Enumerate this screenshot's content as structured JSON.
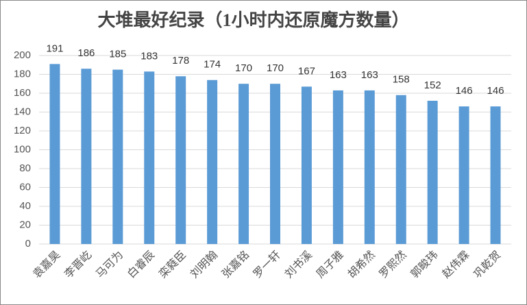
{
  "chart_data": {
    "type": "bar",
    "title": "大堆最好纪录（1小时内还原魔方数量）",
    "categories": [
      "袁嘉昊",
      "李晋屹",
      "马可为",
      "白睿辰",
      "栾蕤臣",
      "刘明翰",
      "张嘉铭",
      "罗一轩",
      "刘书溪",
      "周子雅",
      "胡希然",
      "罗熙然",
      "郭畯玮",
      "赵伟霖",
      "巩乾贺"
    ],
    "values": [
      191,
      186,
      185,
      183,
      178,
      174,
      170,
      170,
      167,
      163,
      163,
      158,
      152,
      146,
      146
    ],
    "color": "#5b9bd5",
    "ylim": [
      0,
      200
    ],
    "yticks": [
      0,
      20,
      40,
      60,
      80,
      100,
      120,
      140,
      160,
      180,
      200
    ],
    "grid": true
  }
}
